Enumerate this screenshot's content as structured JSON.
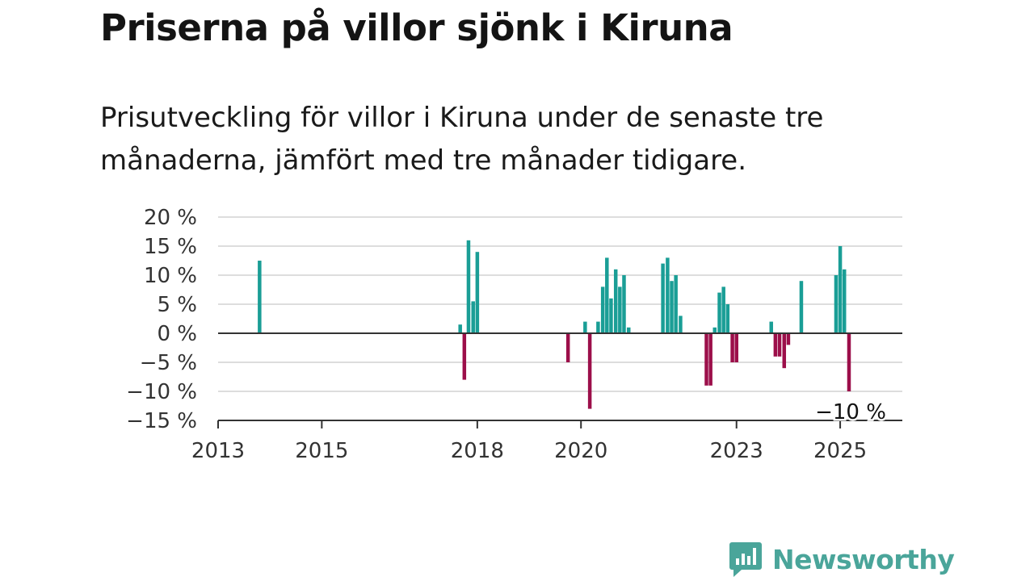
{
  "title": "Priserna på villor sjönk i Kiruna",
  "subtitle": "Prisutveckling för villor i Kiruna under de senaste tre månaderna, jämfört med tre månader tidigare.",
  "brand": {
    "name": "Newsworthy",
    "color": "#4aa59a",
    "logo_icon": "bar-chart-speech-bubble-icon"
  },
  "colors": {
    "positive": "#1a9e96",
    "negative": "#9c0f4a",
    "grid": "#dddddd",
    "axis": "#333333"
  },
  "chart_data": {
    "type": "bar",
    "title": "Priserna på villor sjönk i Kiruna",
    "xlabel": "",
    "ylabel": "",
    "ylim": [
      -15,
      20
    ],
    "yticks": [
      20,
      15,
      10,
      5,
      0,
      -5,
      -10,
      -15
    ],
    "ytick_labels": [
      "20 %",
      "15 %",
      "10 %",
      "5 %",
      "0 %",
      "−5 %",
      "−10 %",
      "−15 %"
    ],
    "xticks": [
      2013,
      2015,
      2018,
      2020,
      2023,
      2025
    ],
    "xtick_labels": [
      "2013",
      "2015",
      "2018",
      "2020",
      "2023",
      "2025"
    ],
    "xlim": [
      2013,
      2025.7
    ],
    "grid": true,
    "last_value_label": "−10 %",
    "series": [
      {
        "points": [
          {
            "x": 2013.8,
            "value": 12.5
          },
          {
            "x": 2017.67,
            "value": 1.5
          },
          {
            "x": 2017.75,
            "value": -8
          },
          {
            "x": 2017.83,
            "value": 16
          },
          {
            "x": 2017.92,
            "value": 5.5
          },
          {
            "x": 2018.0,
            "value": 14
          },
          {
            "x": 2019.75,
            "value": -5
          },
          {
            "x": 2020.08,
            "value": 2
          },
          {
            "x": 2020.17,
            "value": -13
          },
          {
            "x": 2020.33,
            "value": 2
          },
          {
            "x": 2020.42,
            "value": 8
          },
          {
            "x": 2020.5,
            "value": 13
          },
          {
            "x": 2020.58,
            "value": 6
          },
          {
            "x": 2020.67,
            "value": 11
          },
          {
            "x": 2020.75,
            "value": 8
          },
          {
            "x": 2020.83,
            "value": 10
          },
          {
            "x": 2020.92,
            "value": 1
          },
          {
            "x": 2021.58,
            "value": 12
          },
          {
            "x": 2021.67,
            "value": 13
          },
          {
            "x": 2021.75,
            "value": 9
          },
          {
            "x": 2021.83,
            "value": 10
          },
          {
            "x": 2021.92,
            "value": 3
          },
          {
            "x": 2022.42,
            "value": -9
          },
          {
            "x": 2022.5,
            "value": -9
          },
          {
            "x": 2022.58,
            "value": 1
          },
          {
            "x": 2022.67,
            "value": 7
          },
          {
            "x": 2022.75,
            "value": 8
          },
          {
            "x": 2022.83,
            "value": 5
          },
          {
            "x": 2022.92,
            "value": -5
          },
          {
            "x": 2023.0,
            "value": -5
          },
          {
            "x": 2023.67,
            "value": 2
          },
          {
            "x": 2023.75,
            "value": -4
          },
          {
            "x": 2023.83,
            "value": -4
          },
          {
            "x": 2023.92,
            "value": -6
          },
          {
            "x": 2024.0,
            "value": -2
          },
          {
            "x": 2024.25,
            "value": 9
          },
          {
            "x": 2024.92,
            "value": 10
          },
          {
            "x": 2025.0,
            "value": 15
          },
          {
            "x": 2025.08,
            "value": 11
          },
          {
            "x": 2025.17,
            "value": -10
          }
        ]
      }
    ]
  }
}
